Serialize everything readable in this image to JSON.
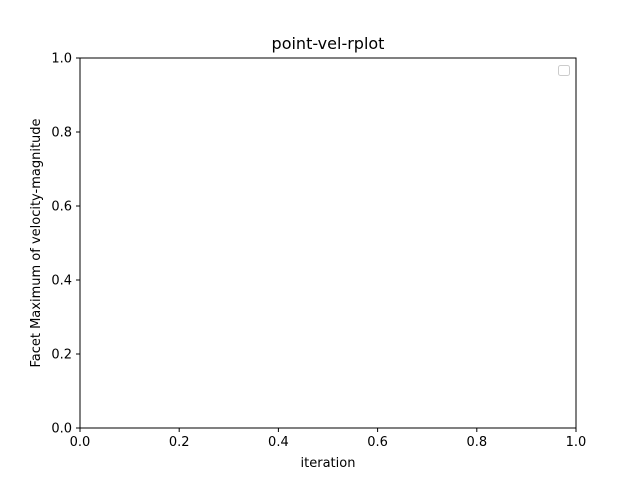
{
  "chart_data": {
    "type": "line",
    "title": "point-vel-rplot",
    "xlabel": "iteration",
    "ylabel": "Facet Maximum of velocity-magnitude",
    "xlim": [
      0.0,
      1.0
    ],
    "ylim": [
      0.0,
      1.0
    ],
    "xticks": [
      "0.0",
      "0.2",
      "0.4",
      "0.6",
      "0.8",
      "1.0"
    ],
    "yticks": [
      "0.0",
      "0.2",
      "0.4",
      "0.6",
      "0.8",
      "1.0"
    ],
    "series": [],
    "grid": false,
    "legend": {
      "placement": "top-right",
      "entries": []
    }
  },
  "colors": {
    "background": "#ffffff",
    "axes": "#000000",
    "legend_border": "#cccccc"
  }
}
